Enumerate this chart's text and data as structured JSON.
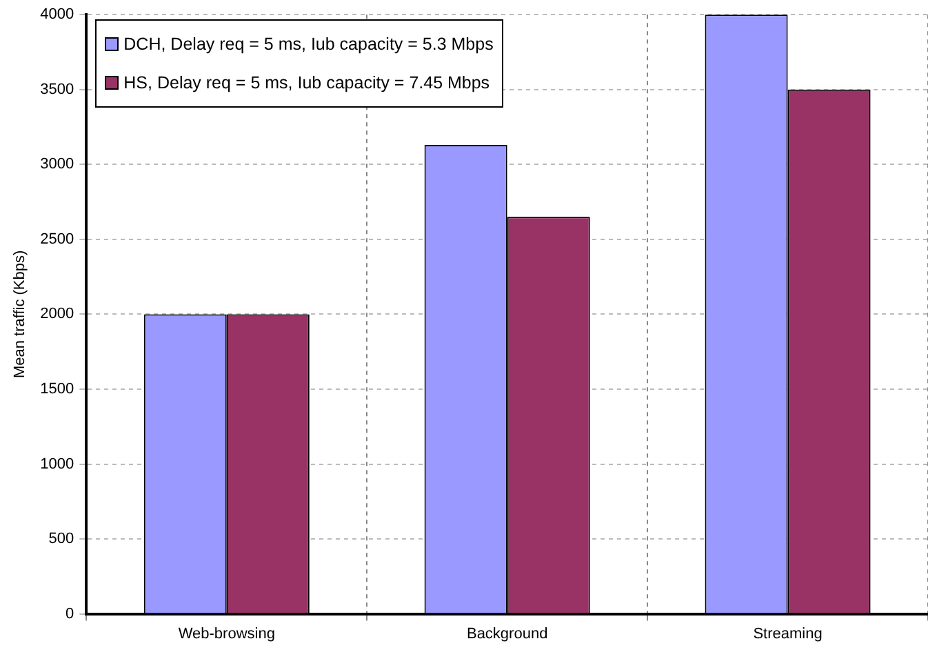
{
  "chart_data": {
    "type": "bar",
    "ylabel": "Mean traffic (Kbps)",
    "categories": [
      "Web-browsing",
      "Background",
      "Streaming"
    ],
    "series": [
      {
        "name": "DCH, Delay req = 5 ms, Iub capacity = 5.3 Mbps",
        "color": "#9999ff",
        "values": [
          2000,
          3130,
          4000
        ]
      },
      {
        "name": "HS, Delay req = 5 ms, Iub capacity = 7.45 Mbps",
        "color": "#993366",
        "values": [
          2000,
          2650,
          3500
        ]
      }
    ],
    "ylim": [
      0,
      4000
    ],
    "yticks": [
      0,
      500,
      1000,
      1500,
      2000,
      2500,
      3000,
      3500,
      4000
    ],
    "grid": true,
    "legend": "top left"
  }
}
